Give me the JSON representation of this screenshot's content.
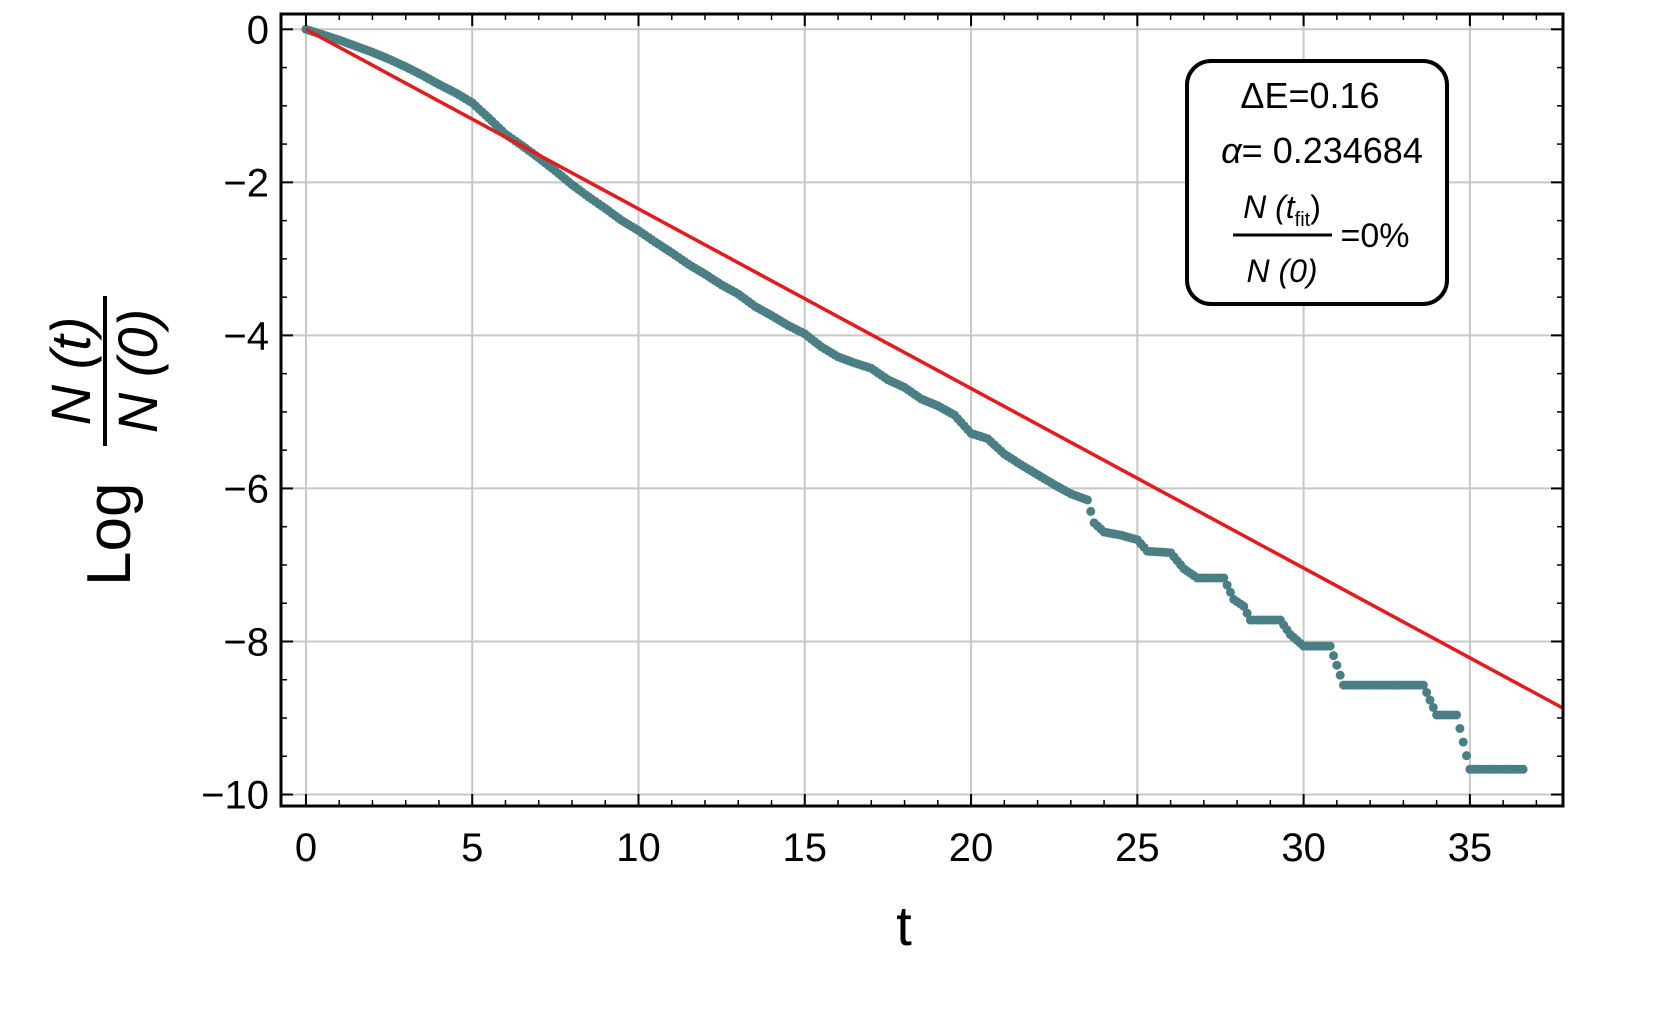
{
  "chart_data": {
    "type": "scatter",
    "xlabel": "t",
    "ylabel": {
      "prefix": "Log",
      "numerator": "N (t)",
      "denominator": "N (0)"
    },
    "xlim": [
      -0.75,
      37.8
    ],
    "ylim": [
      -10.15,
      0.2
    ],
    "x_ticks": [
      0,
      5,
      10,
      15,
      20,
      25,
      30,
      35
    ],
    "x_tick_labels": [
      "0",
      "5",
      "10",
      "15",
      "20",
      "25",
      "30",
      "35"
    ],
    "y_ticks": [
      0,
      -2,
      -4,
      -6,
      -8,
      -10
    ],
    "y_tick_labels": [
      "0",
      "−2",
      "−4",
      "−6",
      "−8",
      "−10"
    ],
    "grid": true,
    "colors": {
      "data": "#4a7f83",
      "fit": "#e41a1c",
      "grid": "#c8c8c8"
    },
    "series": [
      {
        "kind": "points",
        "x": [
          0,
          0.5,
          1,
          1.5,
          2,
          2.5,
          3,
          3.5,
          4,
          4.5,
          5,
          5.5,
          6,
          6.5,
          7,
          7.5,
          8,
          8.5,
          9,
          9.5,
          10,
          10.5,
          11,
          11.5,
          12,
          12.5,
          13,
          13.5,
          14,
          14.5,
          15,
          15.5,
          16,
          16.5,
          17,
          17.5,
          18,
          18.5,
          19,
          19.5,
          20,
          20.5,
          21,
          21.5,
          22,
          22.5,
          23,
          23.5,
          23.7,
          24,
          24.5,
          25,
          25.3,
          26,
          26.4,
          26.8,
          27.6,
          27.9,
          28.2,
          28.4,
          29.3,
          29.6,
          30.0,
          30.8,
          31.0,
          31.2,
          33.6,
          34.0,
          34.6,
          35.0,
          36.6
        ],
        "y": [
          0,
          -0.07,
          -0.14,
          -0.22,
          -0.3,
          -0.39,
          -0.49,
          -0.6,
          -0.72,
          -0.83,
          -0.96,
          -1.16,
          -1.37,
          -1.52,
          -1.68,
          -1.85,
          -2.03,
          -2.19,
          -2.34,
          -2.5,
          -2.63,
          -2.78,
          -2.92,
          -3.07,
          -3.2,
          -3.34,
          -3.46,
          -3.62,
          -3.74,
          -3.87,
          -3.98,
          -4.15,
          -4.28,
          -4.36,
          -4.43,
          -4.58,
          -4.68,
          -4.83,
          -4.92,
          -5.04,
          -5.28,
          -5.35,
          -5.55,
          -5.69,
          -5.82,
          -5.95,
          -6.07,
          -6.15,
          -6.45,
          -6.57,
          -6.61,
          -6.67,
          -6.82,
          -6.84,
          -7.05,
          -7.17,
          -7.17,
          -7.45,
          -7.54,
          -7.72,
          -7.72,
          -7.91,
          -8.06,
          -8.06,
          -8.31,
          -8.57,
          -8.57,
          -8.96,
          -8.96,
          -9.67,
          -9.67
        ]
      },
      {
        "kind": "line",
        "x": [
          0,
          37.8
        ],
        "y": [
          0,
          -8.871
        ]
      }
    ],
    "annotation": {
      "line1": "ΔE=0.16",
      "line2_symbol": "α",
      "line2_value": "= 0.234684",
      "frac_num_main": "N (t",
      "frac_num_sub": "fit",
      "frac_num_close": ")",
      "frac_den": "N (0)",
      "frac_value": "=0%"
    }
  }
}
